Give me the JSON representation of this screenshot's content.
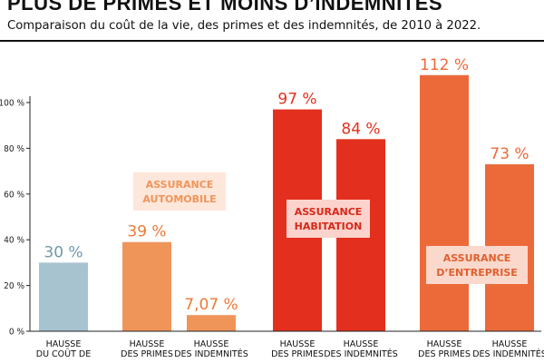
{
  "header": {
    "title": "PLUS DE PRIMES ET MOINS D’INDEMNITÉS",
    "subtitle": "Comparaison du coût de la vie, des primes et des indemnités, de 2010 à 2022."
  },
  "chart_data": {
    "type": "bar",
    "ylim": [
      0,
      100
    ],
    "yticks": [
      "0 %",
      "20 %",
      "40 %",
      "60 %",
      "80 %",
      "100 %"
    ],
    "categories": [
      [
        "HAUSSE",
        "DU COÛT DE"
      ],
      [
        "HAUSSE",
        "DES PRIMES"
      ],
      [
        "HAUSSE",
        "DES INDEMNITÉS"
      ],
      [
        "HAUSSE",
        "DES PRIMES"
      ],
      [
        "HAUSSE",
        "DES INDEMNITÉS"
      ],
      [
        "HAUSSE",
        "DES PRIMES"
      ],
      [
        "HAUSSE",
        "DES INDEMNITÉS"
      ]
    ],
    "values": [
      30,
      39,
      7.07,
      97,
      84,
      112,
      73
    ],
    "value_labels": [
      "30 %",
      "39 %",
      "7,07 %",
      "97 %",
      "84 %",
      "112 %",
      "73 %"
    ],
    "colors": [
      "#a8c3d0",
      "#f0955a",
      "#f0955a",
      "#e3301e",
      "#e3301e",
      "#ec6a3a",
      "#ec6a3a"
    ],
    "label_colors": [
      "#6f98ad",
      "#ec7a3a",
      "#ec7a3a",
      "#e3301e",
      "#e3301e",
      "#ec6a3a",
      "#ec6a3a"
    ],
    "groups": [
      {
        "lines": [
          "ASSURANCE",
          "AUTOMOBILE"
        ],
        "bg": "#fde6da",
        "fg": "#f0955a"
      },
      {
        "lines": [
          "ASSURANCE",
          "HABITATION"
        ],
        "bg": "#fbd3cc",
        "fg": "#d8281a"
      },
      {
        "lines": [
          "ASSURANCE",
          "D’ENTREPRISE"
        ],
        "bg": "#fbd8cc",
        "fg": "#e0602f"
      }
    ]
  }
}
